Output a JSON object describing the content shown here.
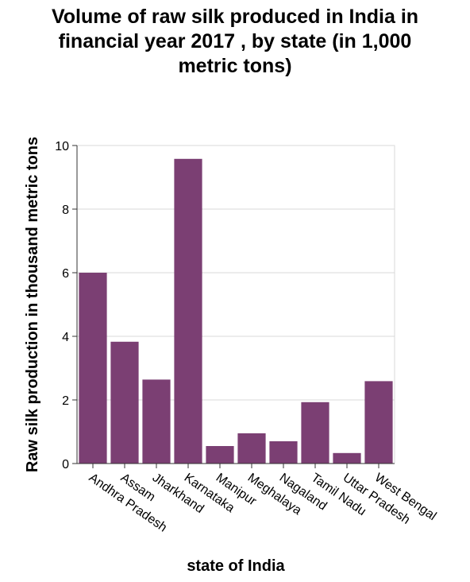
{
  "chart_data": {
    "type": "bar",
    "title": [
      "Volume of raw silk produced in India in",
      "financial year 2017 , by state (in 1,000",
      "metric tons)"
    ],
    "xlabel": "state of India",
    "ylabel": "Raw silk production in thousand metric tons",
    "categories": [
      "Andhra Pradesh",
      "Assam",
      "Jharkhand",
      "Karnataka",
      "Manipur",
      "Meghalaya",
      "Nagaland",
      "Tamil Nadu",
      "Uttar Pradesh",
      "West Bengal"
    ],
    "values": [
      6.0,
      3.83,
      2.64,
      9.58,
      0.55,
      0.95,
      0.7,
      1.93,
      0.33,
      2.59
    ],
    "ylim": [
      0,
      10
    ],
    "yticks": [
      0,
      2,
      4,
      6,
      8,
      10
    ],
    "grid": true,
    "bar_color": "#7b3f73"
  }
}
